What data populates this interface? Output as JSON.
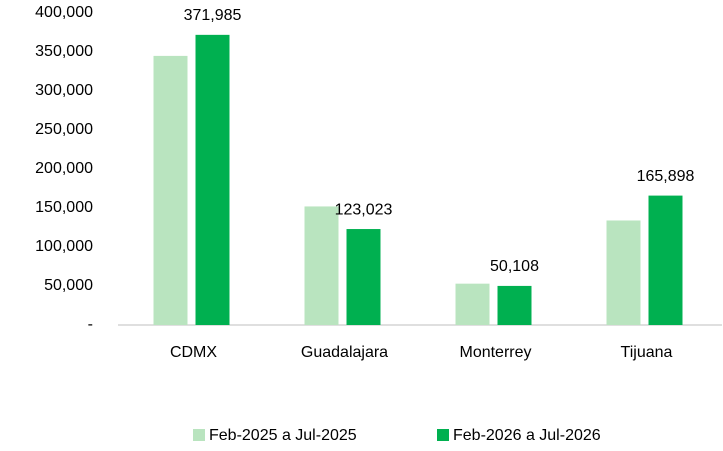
{
  "chart_data": {
    "type": "bar",
    "categories": [
      "CDMX",
      "Guadalajara",
      "Monterrey",
      "Tijuana"
    ],
    "series": [
      {
        "name": "Feb-2025 a Jul-2025",
        "color": "#b9e4bf",
        "values": [
          345000,
          152000,
          53000,
          134000
        ]
      },
      {
        "name": "Feb-2026 a Jul-2026",
        "color": "#00b050",
        "values": [
          371985,
          123023,
          50108,
          165898
        ],
        "value_labels": [
          "371,985",
          "123,023",
          "50,108",
          "165,898"
        ]
      }
    ],
    "ylim": [
      0,
      400000
    ],
    "yticks": [
      {
        "value": 0,
        "label": "-"
      },
      {
        "value": 50000,
        "label": "50,000"
      },
      {
        "value": 100000,
        "label": "100,000"
      },
      {
        "value": 150000,
        "label": "150,000"
      },
      {
        "value": 200000,
        "label": "200,000"
      },
      {
        "value": 250000,
        "label": "250,000"
      },
      {
        "value": 300000,
        "label": "300,000"
      },
      {
        "value": 350000,
        "label": "350,000"
      },
      {
        "value": 400000,
        "label": "400,000"
      }
    ],
    "grid": false,
    "legend": "bottom"
  }
}
